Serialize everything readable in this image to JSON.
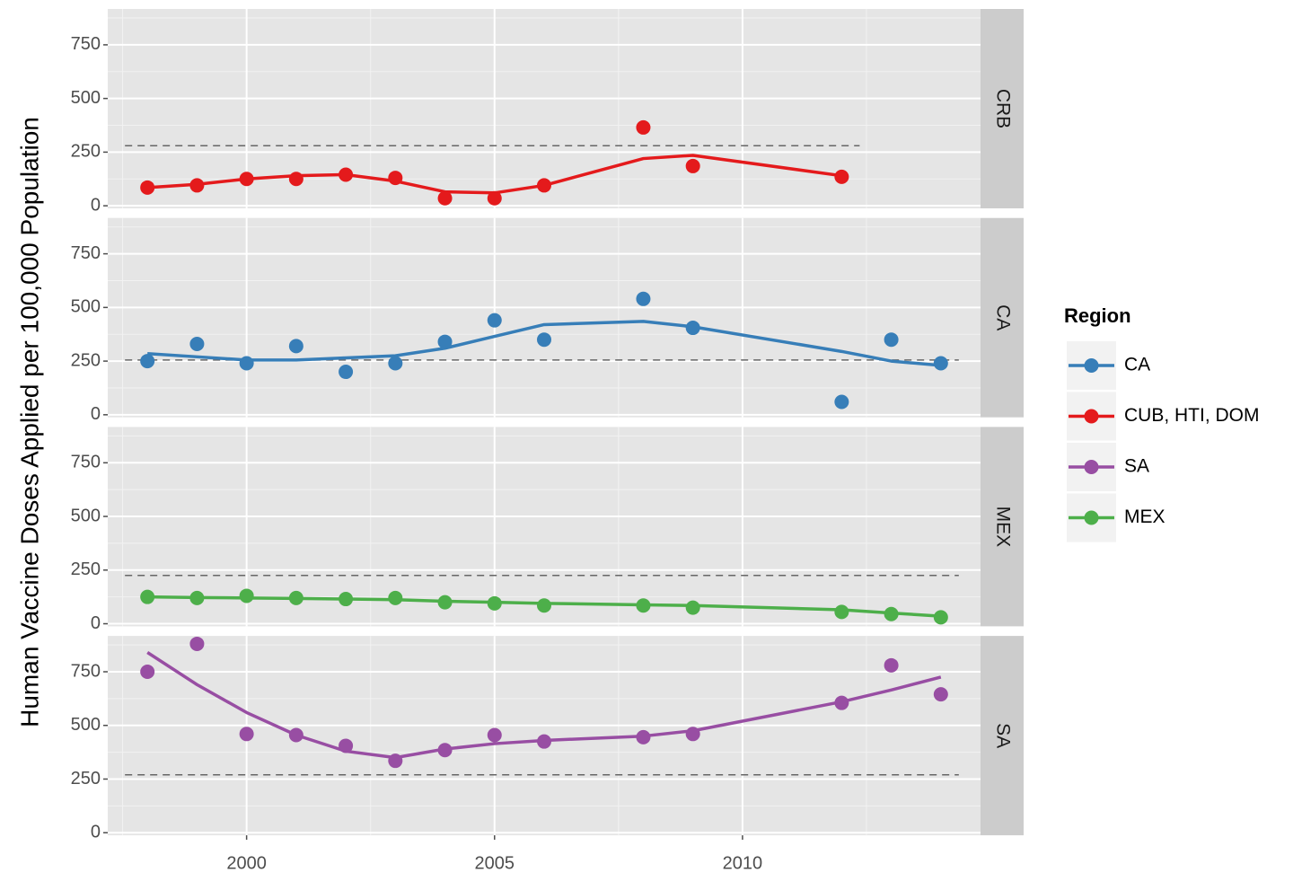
{
  "chart_data": {
    "type": "line",
    "y_label": "Human Vaccine Doses Applied per 100,000 Population",
    "legend_title": "Region",
    "facets": [
      "CRB",
      "CA",
      "MEX",
      "SA"
    ],
    "xlim": [
      1997.2,
      2014.8
    ],
    "xticks": [
      2000,
      2005,
      2010
    ],
    "ylim": [
      -12,
      917
    ],
    "yticks": [
      0,
      250,
      500,
      750
    ],
    "grid": true,
    "legend": "right",
    "series": [
      {
        "name": "CA",
        "color": "#377eb8",
        "facet": "CA",
        "reference": 255,
        "x": [
          1998,
          1999,
          2000,
          2001,
          2002,
          2003,
          2004,
          2005,
          2006,
          2008,
          2009,
          2012,
          2013,
          2014
        ],
        "values": [
          250,
          330,
          240,
          320,
          200,
          240,
          340,
          440,
          350,
          540,
          405,
          60,
          350,
          240
        ],
        "smooth": [
          285,
          270,
          255,
          255,
          265,
          275,
          310,
          365,
          420,
          435,
          410,
          295,
          250,
          230
        ]
      },
      {
        "name": "CUB, HTI, DOM",
        "color": "#e41a1c",
        "facet": "CRB",
        "reference": 280,
        "x": [
          1998,
          1999,
          2000,
          2001,
          2002,
          2003,
          2004,
          2005,
          2006,
          2008,
          2009,
          2012
        ],
        "values": [
          85,
          95,
          125,
          125,
          145,
          130,
          35,
          35,
          95,
          365,
          185,
          135
        ],
        "smooth": [
          85,
          100,
          125,
          140,
          145,
          115,
          65,
          60,
          95,
          220,
          235,
          140
        ]
      },
      {
        "name": "SA",
        "color": "#984ea3",
        "facet": "SA",
        "reference": 270,
        "x": [
          1998,
          1999,
          2000,
          2001,
          2002,
          2003,
          2004,
          2005,
          2006,
          2008,
          2009,
          2012,
          2013,
          2014
        ],
        "values": [
          750,
          880,
          460,
          455,
          405,
          335,
          385,
          455,
          425,
          445,
          460,
          605,
          780,
          645
        ],
        "smooth": [
          840,
          690,
          560,
          455,
          380,
          350,
          390,
          415,
          430,
          450,
          475,
          610,
          665,
          725
        ]
      },
      {
        "name": "MEX",
        "color": "#4daf4a",
        "facet": "MEX",
        "reference": 225,
        "x": [
          1998,
          1999,
          2000,
          2001,
          2002,
          2003,
          2004,
          2005,
          2006,
          2008,
          2009,
          2012,
          2013,
          2014
        ],
        "values": [
          125,
          120,
          130,
          120,
          115,
          120,
          100,
          95,
          85,
          85,
          75,
          55,
          45,
          30
        ],
        "smooth": [
          125,
          122,
          120,
          118,
          115,
          112,
          105,
          100,
          95,
          88,
          85,
          65,
          50,
          35
        ]
      }
    ]
  }
}
